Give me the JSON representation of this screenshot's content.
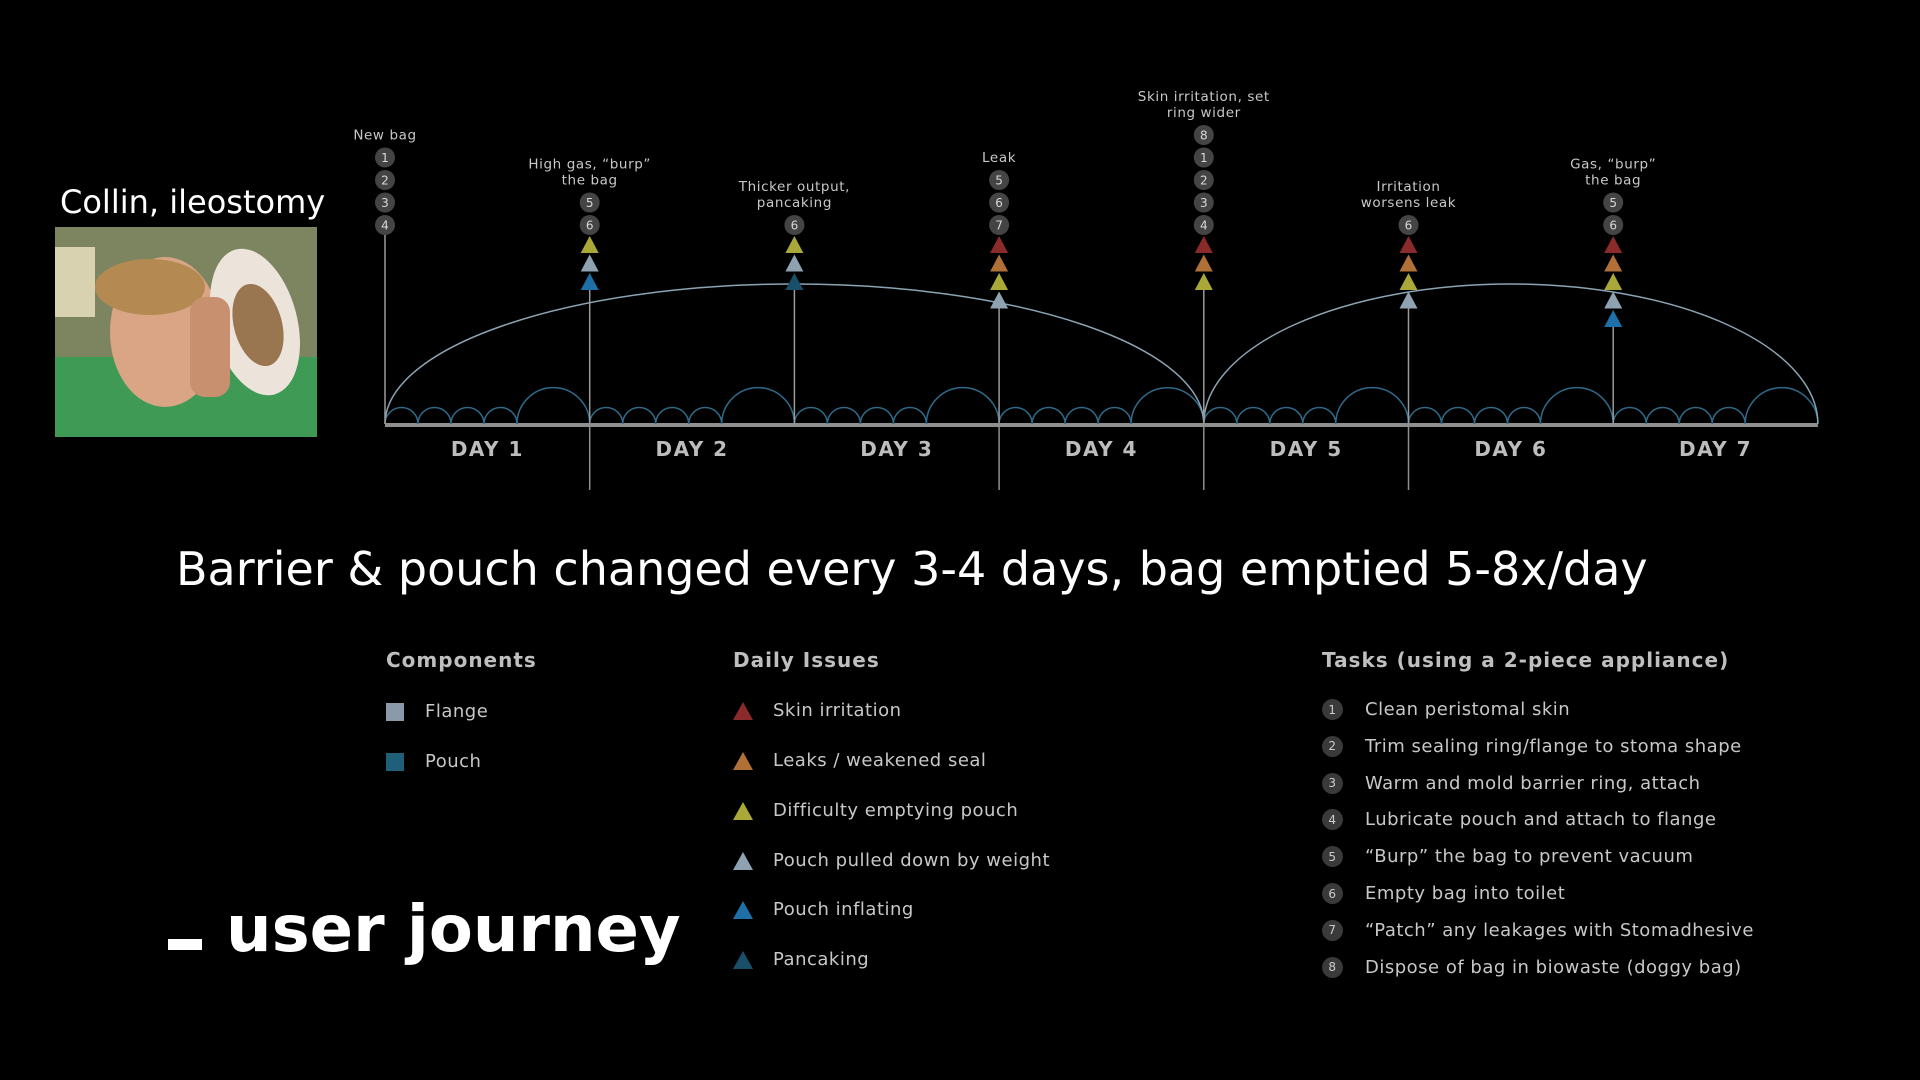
{
  "persona": {
    "name": "Collin, ileostomy"
  },
  "days": [
    "DAY 1",
    "DAY 2",
    "DAY 3",
    "DAY 4",
    "DAY 5",
    "DAY 6",
    "DAY 7"
  ],
  "events": [
    {
      "label": "New bag",
      "numbers": [
        "1",
        "2",
        "3",
        "4"
      ],
      "triangles": []
    },
    {
      "label": "High gas, “burp” the bag",
      "label_lines": [
        "High gas, “burp”",
        "the bag"
      ],
      "numbers": [
        "5",
        "6"
      ],
      "triangles": [
        "difficulty",
        "pulled",
        "inflating"
      ]
    },
    {
      "label": "Thicker output, pancaking",
      "label_lines": [
        "Thicker output,",
        "pancaking"
      ],
      "numbers": [
        "6"
      ],
      "triangles": [
        "difficulty",
        "pulled",
        "pancaking"
      ]
    },
    {
      "label": "Leak",
      "numbers": [
        "5",
        "6",
        "7"
      ],
      "triangles": [
        "skin",
        "leak",
        "difficulty",
        "pulled"
      ]
    },
    {
      "label": "Skin irritation, set ring wider",
      "label_lines": [
        "Skin irritation, set",
        "ring wider"
      ],
      "numbers": [
        "8",
        "1",
        "2",
        "3",
        "4"
      ],
      "triangles": [
        "skin",
        "leak",
        "difficulty"
      ]
    },
    {
      "label": "Irritation worsens leak",
      "label_lines": [
        "Irritation",
        "worsens leak"
      ],
      "numbers": [
        "6"
      ],
      "triangles": [
        "skin",
        "leak",
        "difficulty",
        "pulled"
      ]
    },
    {
      "label": "Gas, “burp” the bag",
      "label_lines": [
        "Gas, “burp”",
        "the bag"
      ],
      "numbers": [
        "5",
        "6"
      ],
      "triangles": [
        "skin",
        "leak",
        "difficulty",
        "pulled",
        "inflating"
      ]
    }
  ],
  "headline": "Barrier & pouch changed every 3-4 days, bag emptied 5-8x/day",
  "components": {
    "title": "Components",
    "items": [
      {
        "label": "Flange",
        "color": "#8a9aa8"
      },
      {
        "label": "Pouch",
        "color": "#1f5f7a"
      }
    ]
  },
  "daily_issues": {
    "title": "Daily Issues",
    "items": [
      {
        "key": "skin",
        "label": "Skin irritation",
        "color": "#8a2a2a"
      },
      {
        "key": "leak",
        "label": "Leaks / weakened seal",
        "color": "#b07038"
      },
      {
        "key": "difficulty",
        "label": "Difficulty emptying pouch",
        "color": "#a9a838"
      },
      {
        "key": "pulled",
        "label": "Pouch pulled down by weight",
        "color": "#8fa2b2"
      },
      {
        "key": "inflating",
        "label": "Pouch inflating",
        "color": "#1f6fa8"
      },
      {
        "key": "pancaking",
        "label": "Pancaking",
        "color": "#1a4f6a"
      }
    ]
  },
  "tasks": {
    "title": "Tasks (using a 2-piece appliance)",
    "items": [
      {
        "num": "1",
        "label": "Clean peristomal skin"
      },
      {
        "num": "2",
        "label": "Trim sealing ring/flange to stoma shape"
      },
      {
        "num": "3",
        "label": "Warm and mold barrier ring, attach"
      },
      {
        "num": "4",
        "label": "Lubricate pouch and attach to flange"
      },
      {
        "num": "5",
        "label": "“Burp” the bag to prevent vacuum"
      },
      {
        "num": "6",
        "label": "Empty bag into toilet"
      },
      {
        "num": "7",
        "label": "“Patch” any leakages with Stomadhesive"
      },
      {
        "num": "8",
        "label": "Dispose of bag in biowaste (doggy bag)"
      }
    ]
  },
  "brand": {
    "text": "user journey"
  }
}
